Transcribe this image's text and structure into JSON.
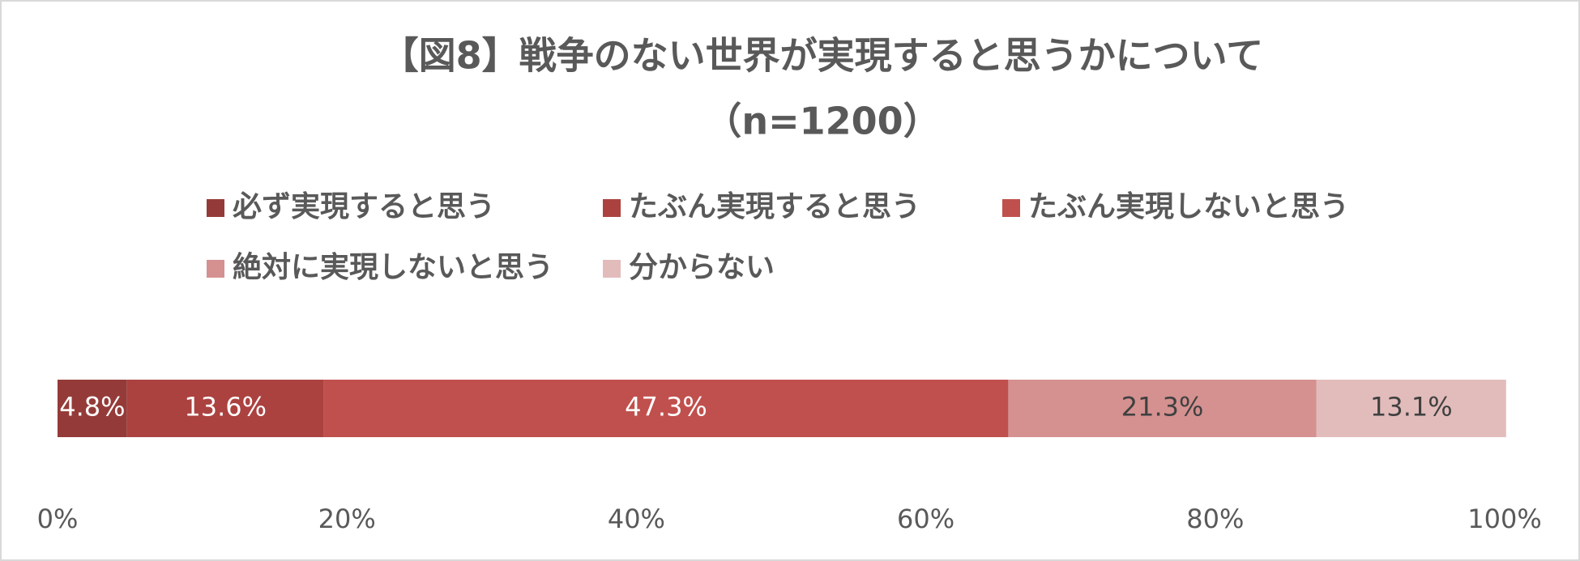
{
  "chart_data": {
    "type": "stacked-bar-horizontal",
    "title": "【図8】戦争のない世界が実現すると思うかについて",
    "subtitle": "（n=1200）",
    "series": [
      {
        "name": "必ず実現すると思う",
        "color": "#943b39",
        "values": [
          4.8
        ],
        "value_labels": [
          "4.8%"
        ]
      },
      {
        "name": "たぶん実現すると思う",
        "color": "#ab4240",
        "values": [
          13.6
        ],
        "value_labels": [
          "13.6%"
        ]
      },
      {
        "name": "たぶん実現しないと思う",
        "color": "#c0504d",
        "values": [
          47.3
        ],
        "value_labels": [
          "47.3%"
        ]
      },
      {
        "name": "絶対に実現しないと思う",
        "color": "#d49190",
        "values": [
          21.3
        ],
        "value_labels": [
          "21.3%"
        ]
      },
      {
        "name": "分からない",
        "color": "#e2bcbb",
        "values": [
          13.1
        ],
        "value_labels": [
          "13.1%"
        ]
      }
    ],
    "xlim": [
      0,
      100
    ],
    "xticks": [
      {
        "value": 0,
        "label": "0%"
      },
      {
        "value": 20,
        "label": "20%"
      },
      {
        "value": 40,
        "label": "40%"
      },
      {
        "value": 60,
        "label": "60%"
      },
      {
        "value": 80,
        "label": "80%"
      },
      {
        "value": 100,
        "label": "100%"
      }
    ],
    "legend": "top"
  }
}
